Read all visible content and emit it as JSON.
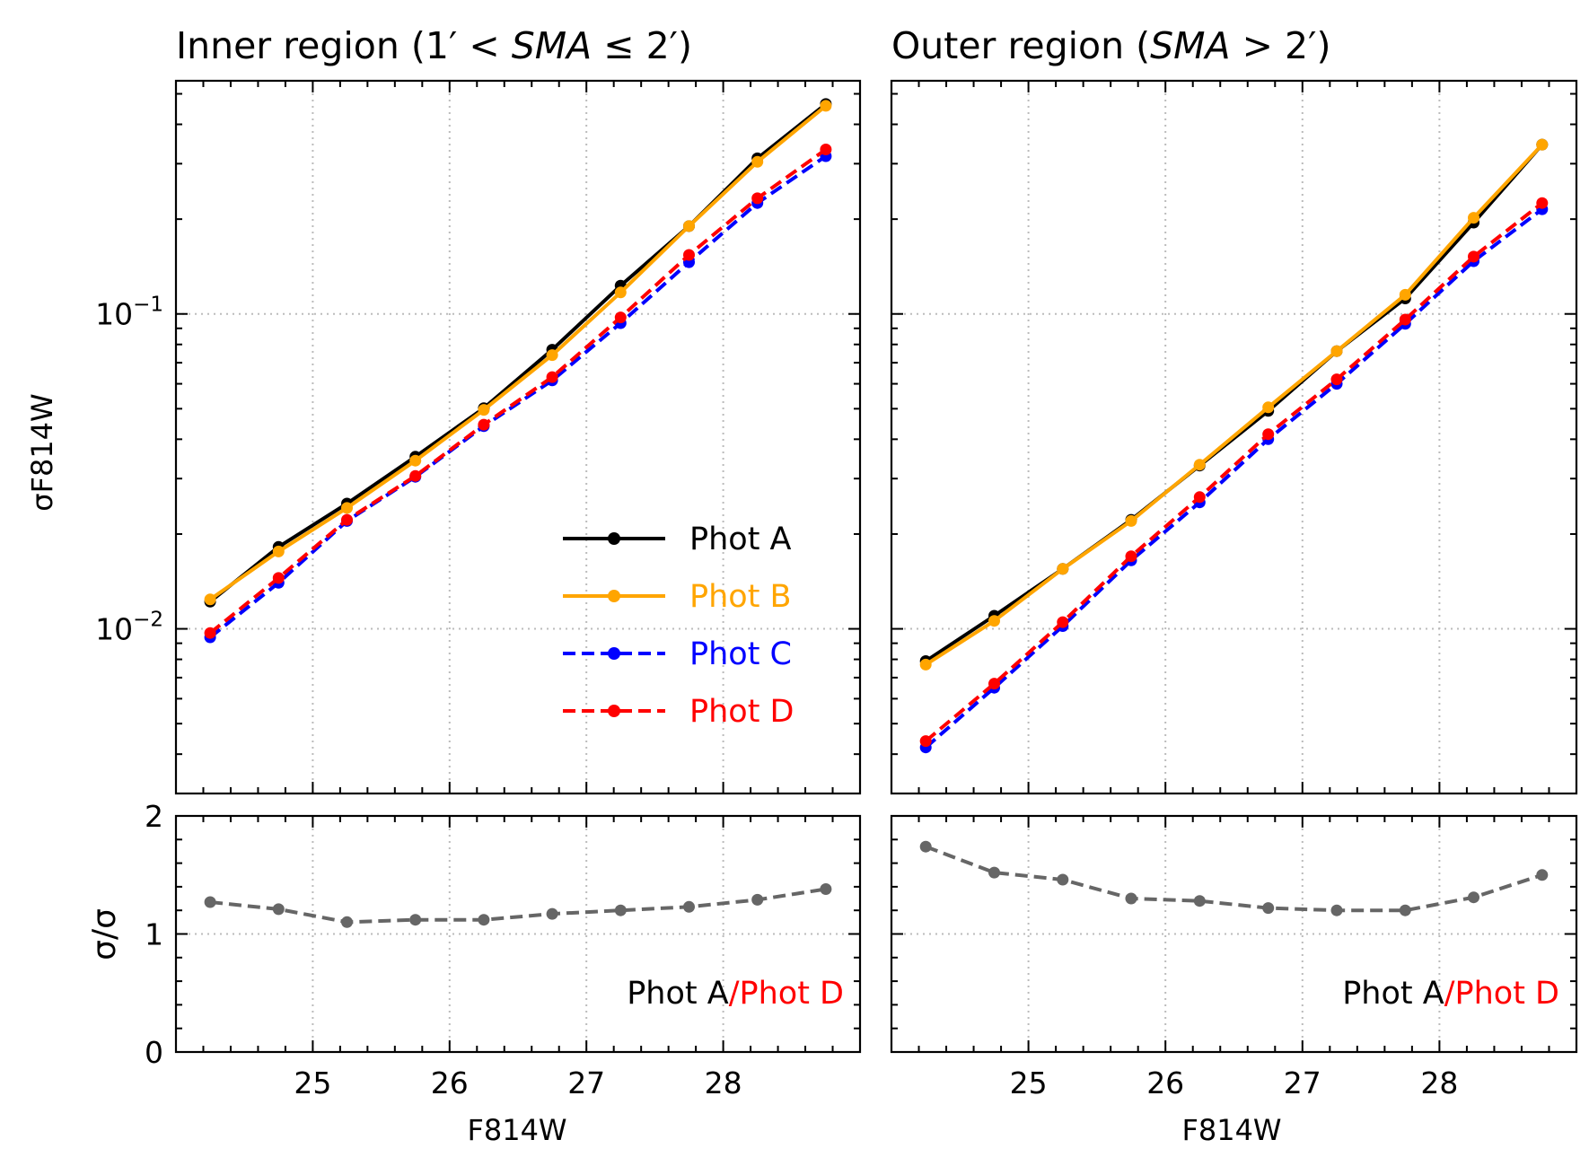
{
  "chart_data": [
    {
      "type": "line",
      "title": "Inner region (1′ < SMA ≤ 2′)",
      "title_parts": {
        "prefix": "Inner region (1",
        "prime1": "′",
        "lt": " < ",
        "sma": "SMA",
        "le": " ≤ 2",
        "prime2": "′",
        "suffix": ")"
      },
      "xlabel": "",
      "ylabel": "σF814W",
      "yscale": "log",
      "ylim": [
        0.003,
        0.55
      ],
      "xlim": [
        24.0,
        29.0
      ],
      "ytick_labels": [
        {
          "value": 0.1,
          "base": "10",
          "exp": "−1"
        },
        {
          "value": 0.01,
          "base": "10",
          "exp": "−2"
        }
      ],
      "x": [
        24.25,
        24.75,
        25.25,
        25.75,
        26.25,
        26.75,
        27.25,
        27.75,
        28.25,
        28.75
      ],
      "series": [
        {
          "name": "Phot A",
          "color": "#000000",
          "dash": "solid",
          "values": [
            0.0122,
            0.0182,
            0.025,
            0.0352,
            0.0502,
            0.077,
            0.123,
            0.19,
            0.312,
            0.464
          ]
        },
        {
          "name": "Phot B",
          "color": "#ffa500",
          "dash": "solid",
          "values": [
            0.0124,
            0.0176,
            0.0242,
            0.0342,
            0.0496,
            0.074,
            0.117,
            0.19,
            0.304,
            0.458
          ]
        },
        {
          "name": "Phot C",
          "color": "#0000ff",
          "dash": "dashed",
          "values": [
            0.0094,
            0.014,
            0.022,
            0.0304,
            0.044,
            0.0615,
            0.0935,
            0.146,
            0.225,
            0.317
          ]
        },
        {
          "name": "Phot D",
          "color": "#ff0000",
          "dash": "dashed",
          "values": [
            0.0097,
            0.0145,
            0.0222,
            0.0306,
            0.0445,
            0.063,
            0.0975,
            0.154,
            0.233,
            0.333
          ]
        }
      ],
      "legend": {
        "placement": "lower-right",
        "entries": [
          "Phot A",
          "Phot B",
          "Phot C",
          "Phot D"
        ]
      }
    },
    {
      "type": "line",
      "title": "Outer region (SMA > 2′)",
      "title_parts": {
        "prefix": "Outer region (",
        "sma": "SMA",
        "gt": " > 2",
        "prime": "′",
        "suffix": ")"
      },
      "xlabel": "",
      "ylabel": "",
      "yscale": "log",
      "ylim": [
        0.003,
        0.55
      ],
      "xlim": [
        24.0,
        29.0
      ],
      "x": [
        24.25,
        24.75,
        25.25,
        25.75,
        26.25,
        26.75,
        27.25,
        27.75,
        28.25,
        28.75
      ],
      "series": [
        {
          "name": "Phot A",
          "color": "#000000",
          "dash": "solid",
          "values": [
            0.0079,
            0.011,
            0.0155,
            0.0222,
            0.033,
            0.0492,
            0.0762,
            0.112,
            0.195,
            0.345
          ]
        },
        {
          "name": "Phot B",
          "color": "#ffa500",
          "dash": "solid",
          "values": [
            0.0077,
            0.0106,
            0.0155,
            0.022,
            0.0332,
            0.0505,
            0.0762,
            0.115,
            0.202,
            0.345
          ]
        },
        {
          "name": "Phot C",
          "color": "#0000ff",
          "dash": "dashed",
          "values": [
            0.0042,
            0.0065,
            0.0102,
            0.0165,
            0.0252,
            0.04,
            0.06,
            0.093,
            0.147,
            0.215
          ]
        },
        {
          "name": "Phot D",
          "color": "#ff0000",
          "dash": "dashed",
          "values": [
            0.0044,
            0.0067,
            0.0105,
            0.017,
            0.0262,
            0.0415,
            0.062,
            0.096,
            0.152,
            0.225
          ]
        }
      ]
    },
    {
      "type": "line",
      "title": "",
      "xlabel": "F814W",
      "ylabel": "σ/σ",
      "ylim": [
        0,
        2
      ],
      "xlim": [
        24.0,
        29.0
      ],
      "ytick_labels": [
        "0",
        "1",
        "2"
      ],
      "xtick_labels": [
        "25",
        "26",
        "27",
        "28"
      ],
      "x": [
        24.25,
        24.75,
        25.25,
        25.75,
        26.25,
        26.75,
        27.25,
        27.75,
        28.25,
        28.75
      ],
      "series": [
        {
          "name": "Phot A/Phot D",
          "color": "#666666",
          "dash": "dashed",
          "values": [
            1.27,
            1.21,
            1.1,
            1.12,
            1.12,
            1.17,
            1.2,
            1.23,
            1.29,
            1.38
          ]
        }
      ],
      "annotation": {
        "part1": "Phot A",
        "part2": "/Phot D",
        "color1": "#000000",
        "color2": "#ff0000"
      }
    },
    {
      "type": "line",
      "title": "",
      "xlabel": "F814W",
      "ylabel": "",
      "ylim": [
        0,
        2
      ],
      "xlim": [
        24.0,
        29.0
      ],
      "xtick_labels": [
        "25",
        "26",
        "27",
        "28"
      ],
      "x": [
        24.25,
        24.75,
        25.25,
        25.75,
        26.25,
        26.75,
        27.25,
        27.75,
        28.25,
        28.75
      ],
      "series": [
        {
          "name": "Phot A/Phot D",
          "color": "#666666",
          "dash": "dashed",
          "values": [
            1.74,
            1.52,
            1.46,
            1.3,
            1.28,
            1.22,
            1.2,
            1.2,
            1.31,
            1.5
          ]
        }
      ],
      "annotation": {
        "part1": "Phot A",
        "part2": "/Phot D",
        "color1": "#000000",
        "color2": "#ff0000"
      }
    }
  ]
}
